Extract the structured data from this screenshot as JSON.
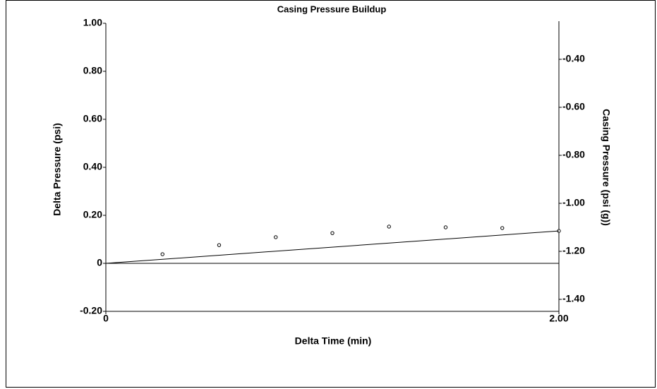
{
  "chart_data": {
    "type": "scatter",
    "title": "Casing Pressure Buildup",
    "x_label": "Delta Time (min)",
    "y_label": "Delta Pressure (psi)",
    "y2_label": "Casing Pressure (psi (g))",
    "xlim": [
      0,
      2
    ],
    "xticks": [
      0,
      {
        "value": 2,
        "label": "2.00"
      }
    ],
    "ylim": [
      -0.2,
      1.0
    ],
    "yticks": [
      {
        "value": -0.2,
        "label": "-0.20"
      },
      0,
      {
        "value": 0.2,
        "label": "0.20"
      },
      {
        "value": 0.4,
        "label": "0.40"
      },
      {
        "value": 0.6,
        "label": "0.60"
      },
      {
        "value": 0.8,
        "label": "0.80"
      },
      {
        "value": 1.0,
        "label": "1.00"
      }
    ],
    "y2lim": [
      -1.45,
      -0.25
    ],
    "y2ticks": [
      {
        "value": -1.4,
        "label": "-1.40"
      },
      {
        "value": -1.2,
        "label": "-1.20"
      },
      {
        "value": -1.0,
        "label": "-1.00"
      },
      {
        "value": -0.8,
        "label": "-0.80"
      },
      {
        "value": -0.6,
        "label": "-0.60"
      },
      {
        "value": -0.4,
        "label": "-0.40"
      }
    ],
    "series": [
      {
        "type": "scatter",
        "color": "#000000",
        "x": [
          0.25,
          0.5,
          0.75,
          1.0,
          1.25,
          1.5,
          1.75,
          2.0
        ],
        "values": [
          0.038,
          0.076,
          0.109,
          0.126,
          0.153,
          0.15,
          0.147,
          0.135
        ]
      },
      {
        "type": "line",
        "color": "#000000",
        "x": [
          0,
          2.0
        ],
        "values": [
          0,
          0.135
        ]
      }
    ]
  }
}
